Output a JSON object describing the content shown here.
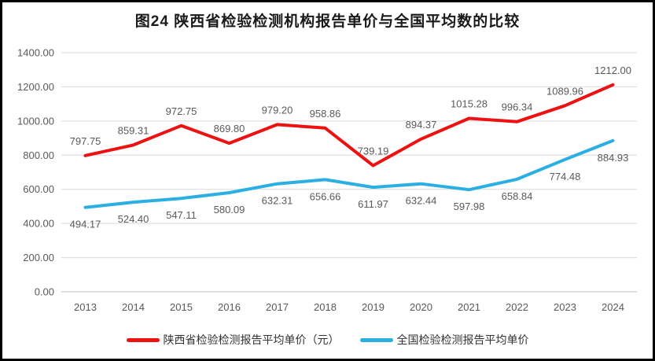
{
  "title": "图24 陕西省检验检测机构报告单价与全国平均数的比较",
  "chart_data": {
    "type": "line",
    "categories": [
      "2013",
      "2014",
      "2015",
      "2016",
      "2017",
      "2018",
      "2019",
      "2020",
      "2021",
      "2022",
      "2023",
      "2024"
    ],
    "series": [
      {
        "name": "陕西省检验检测报告平均单价（元）",
        "color": "#ee1111",
        "label_position": "above",
        "values": [
          797.75,
          859.31,
          972.75,
          869.8,
          979.2,
          958.86,
          739.19,
          894.37,
          1015.28,
          996.34,
          1089.96,
          1212.0
        ]
      },
      {
        "name": "全国检验检测报告平均单价",
        "color": "#2bafe3",
        "label_position": "below",
        "values": [
          494.17,
          524.4,
          547.11,
          580.09,
          632.31,
          656.66,
          611.97,
          632.44,
          597.98,
          658.84,
          774.48,
          884.93
        ]
      }
    ],
    "xlabel": "",
    "ylabel": "",
    "ylim": [
      0,
      1400
    ],
    "ytick_step": 200,
    "ytick_labels": [
      "0.00",
      "200.00",
      "400.00",
      "600.00",
      "800.00",
      "1000.00",
      "1200.00",
      "1400.00"
    ],
    "data_label_decimals": 2,
    "grid": true,
    "legend_position": "bottom"
  },
  "colors": {
    "background": "#ffffff",
    "frame": "#000000",
    "grid": "#d9d9d9",
    "axis_line": "#c0c0c0",
    "axis_text": "#595959",
    "data_label_text": "#595959",
    "title_text": "#1a1a1a",
    "legend_text": "#333333"
  }
}
